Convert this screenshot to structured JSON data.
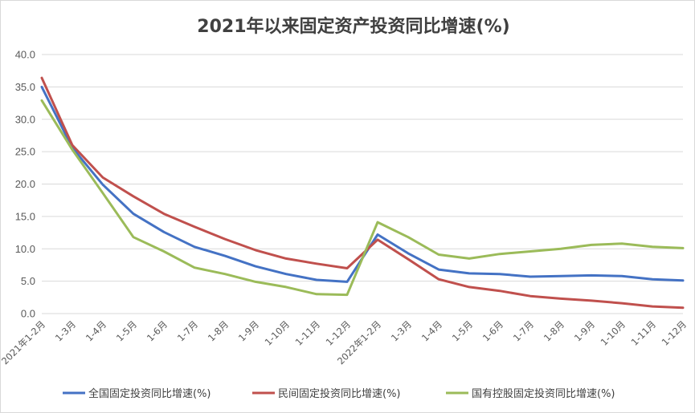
{
  "chart_data": {
    "type": "line",
    "title": "2021年以来固定资产投资同比增速(%)",
    "xlabel": "",
    "ylabel": "",
    "ylim": [
      0,
      40
    ],
    "yticks": [
      "0.0",
      "5.0",
      "10.0",
      "15.0",
      "20.0",
      "25.0",
      "30.0",
      "35.0",
      "40.0"
    ],
    "grid": true,
    "legend": "bottom",
    "categories": [
      "2021年1-2月",
      "1-3月",
      "1-4月",
      "1-5月",
      "1-6月",
      "1-7月",
      "1-8月",
      "1-9月",
      "1-10月",
      "1-11月",
      "1-12月",
      "2022年1-2月",
      "1-3月",
      "1-4月",
      "1-5月",
      "1-6月",
      "1-7月",
      "1-8月",
      "1-9月",
      "1-10月",
      "1-11月",
      "1-12月"
    ],
    "series": [
      {
        "name": "全国固定投资同比增速(%)",
        "color": "#4472c4",
        "values": [
          35.0,
          25.6,
          19.9,
          15.4,
          12.6,
          10.3,
          8.9,
          7.3,
          6.1,
          5.2,
          4.9,
          12.2,
          9.3,
          6.8,
          6.2,
          6.1,
          5.7,
          5.8,
          5.9,
          5.8,
          5.3,
          5.1
        ]
      },
      {
        "name": "民间固定投资同比增速(%)",
        "color": "#c0504d",
        "values": [
          36.4,
          26.0,
          21.0,
          18.1,
          15.4,
          13.4,
          11.5,
          9.8,
          8.5,
          7.7,
          7.0,
          11.4,
          8.4,
          5.3,
          4.1,
          3.5,
          2.7,
          2.3,
          2.0,
          1.6,
          1.1,
          0.9
        ]
      },
      {
        "name": "国有控股固定投资同比增速(%)",
        "color": "#9bbb59",
        "values": [
          32.9,
          25.3,
          18.6,
          11.8,
          9.6,
          7.1,
          6.1,
          4.9,
          4.1,
          3.0,
          2.9,
          14.1,
          11.8,
          9.1,
          8.5,
          9.2,
          9.6,
          10.0,
          10.6,
          10.8,
          10.3,
          10.1
        ]
      }
    ]
  }
}
